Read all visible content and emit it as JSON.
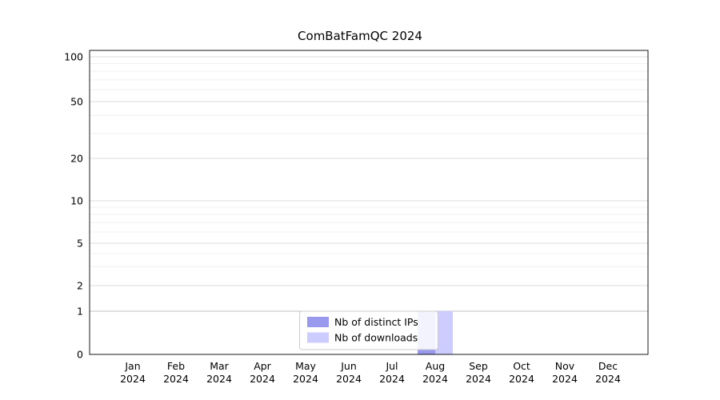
{
  "chart_data": {
    "type": "bar",
    "title": "ComBatFamQC 2024",
    "categories": [
      "Jan 2024",
      "Feb 2024",
      "Mar 2024",
      "Apr 2024",
      "May 2024",
      "Jun 2024",
      "Jul 2024",
      "Aug 2024",
      "Sep 2024",
      "Oct 2024",
      "Nov 2024",
      "Dec 2024"
    ],
    "series": [
      {
        "name": "Nb of distinct IPs",
        "color": "#9999ee",
        "values": [
          0,
          0,
          0,
          0,
          0,
          0,
          0,
          1,
          0,
          0,
          0,
          0
        ]
      },
      {
        "name": "Nb of downloads",
        "color": "#ccccff",
        "values": [
          0,
          0,
          0,
          0,
          0,
          0,
          0,
          1,
          0,
          0,
          0,
          0
        ]
      }
    ],
    "y_ticks": [
      0,
      1,
      2,
      5,
      10,
      20,
      50,
      100
    ],
    "y_scale": "log-like",
    "ylim": [
      0,
      100
    ],
    "xlabel": "",
    "ylabel": "",
    "grid": true,
    "legend_position": "bottom-center",
    "legend": [
      "Nb of distinct IPs",
      "Nb of downloads"
    ]
  },
  "colors": {
    "background": "#ffffff",
    "grid_minor": "#f0f0f0",
    "grid_major": "#dedede",
    "grid_baseline_one": "#c0c0c0",
    "axis_frame": "#000000",
    "legend_border": "#cccccc",
    "text": "#000000"
  }
}
